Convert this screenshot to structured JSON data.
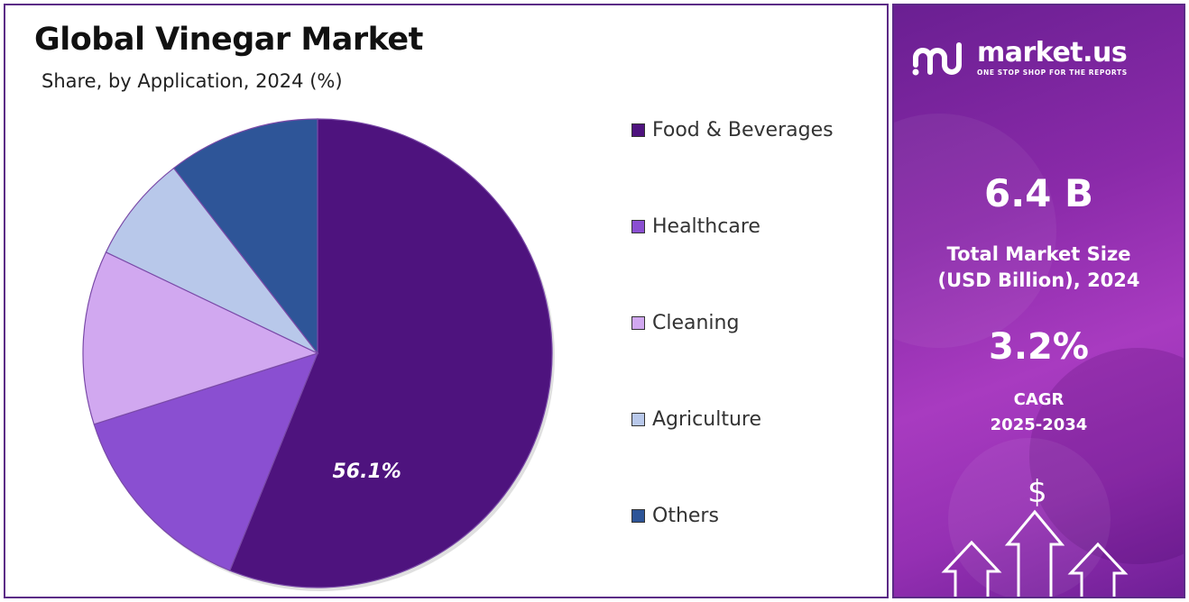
{
  "chart_data": {
    "type": "pie",
    "title": "Global Vinegar Market",
    "subtitle": "Share, by Application, 2024 (%)",
    "categories": [
      "Food & Beverages",
      "Healthcare",
      "Cleaning",
      "Agriculture",
      "Others"
    ],
    "values": [
      56.1,
      14.0,
      12.0,
      7.4,
      10.5
    ],
    "colors": [
      "#4e137e",
      "#8a4fd1",
      "#d1a8f0",
      "#b8c8ea",
      "#2e5598"
    ],
    "data_labels": [
      "56.1%",
      "",
      "",
      "",
      ""
    ],
    "start_angle_deg": 0,
    "direction": "clockwise",
    "legend_position": "right"
  },
  "sidebar": {
    "brand_name": "market.us",
    "brand_tagline": "ONE STOP SHOP FOR THE REPORTS",
    "market_value": "6.4 B",
    "market_label_line1": "Total Market Size",
    "market_label_line2": "(USD Billion), 2024",
    "cagr_value": "3.2%",
    "cagr_label_line1": "CAGR",
    "cagr_label_line2": "2025-2034",
    "dollar_symbol": "$"
  }
}
